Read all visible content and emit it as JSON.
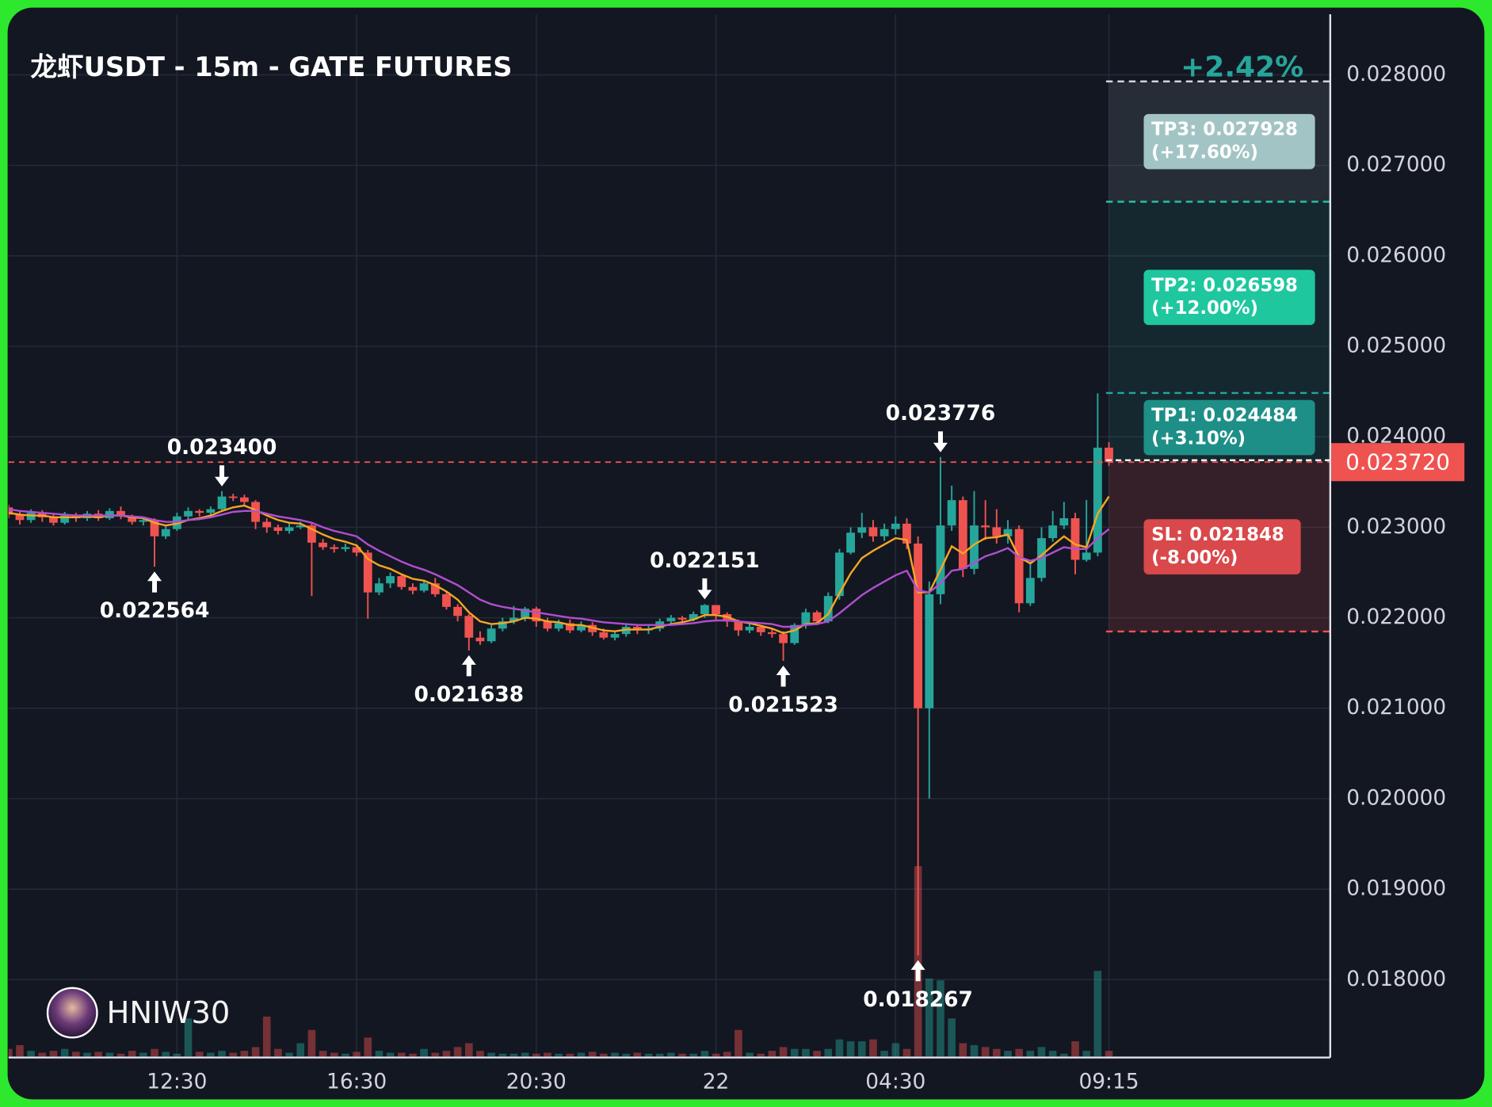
{
  "chart_data": {
    "type": "candlestick",
    "title": "龙虾USDT - 15m - GATE FUTURES",
    "change_label": "+2.42%",
    "watermark": "HNIW30",
    "categories": [
      null,
      null,
      null,
      null,
      null,
      null,
      null,
      null,
      null,
      null,
      null,
      null,
      null,
      null,
      null,
      "12:30",
      null,
      null,
      null,
      null,
      null,
      null,
      null,
      null,
      null,
      null,
      null,
      null,
      null,
      null,
      null,
      "16:30",
      null,
      null,
      null,
      null,
      null,
      null,
      null,
      null,
      null,
      null,
      null,
      null,
      null,
      null,
      null,
      "20:30",
      null,
      null,
      null,
      null,
      null,
      null,
      null,
      null,
      null,
      null,
      null,
      null,
      null,
      null,
      null,
      "22",
      null,
      null,
      null,
      null,
      null,
      null,
      null,
      null,
      null,
      null,
      null,
      null,
      null,
      null,
      null,
      "04:30",
      null,
      null,
      null,
      null,
      null,
      null,
      null,
      null,
      null,
      null,
      null,
      null,
      null,
      null,
      null,
      null,
      null,
      null,
      "09:15"
    ],
    "open": [
      0.02322,
      0.02314,
      0.02308,
      0.02316,
      0.02311,
      0.02305,
      0.02313,
      0.0231,
      0.02315,
      0.0231,
      0.02318,
      0.02312,
      0.02306,
      0.02308,
      0.0229,
      0.02298,
      0.02312,
      0.02318,
      0.02316,
      0.0232,
      0.02334,
      0.02333,
      0.02328,
      0.02306,
      0.023,
      0.02296,
      0.023,
      0.02302,
      0.02283,
      0.02278,
      0.02276,
      0.02278,
      0.02272,
      0.02228,
      0.02238,
      0.02246,
      0.02234,
      0.0223,
      0.02238,
      0.02226,
      0.02212,
      0.02202,
      0.02178,
      0.02174,
      0.02188,
      0.02196,
      0.022,
      0.0221,
      0.02196,
      0.02188,
      0.02194,
      0.02186,
      0.02192,
      0.02184,
      0.02178,
      0.02182,
      0.0219,
      0.02186,
      0.02188,
      0.02196,
      0.022,
      0.02198,
      0.02204,
      0.02214,
      0.02204,
      0.02196,
      0.02186,
      0.0219,
      0.02184,
      0.02182,
      0.02172,
      0.02192,
      0.02206,
      0.02196,
      0.02224,
      0.02272,
      0.02294,
      0.023,
      0.0229,
      0.02298,
      0.02304,
      0.02282,
      0.021,
      0.02226,
      0.02302,
      0.0233,
      0.02254,
      0.02302,
      0.023,
      0.0229,
      0.02298,
      0.02216,
      0.02244,
      0.02288,
      0.02302,
      0.0231,
      0.02264,
      0.02272,
      0.02388
    ],
    "high": [
      0.02325,
      0.02318,
      0.0232,
      0.02319,
      0.02314,
      0.02317,
      0.02316,
      0.02318,
      0.02319,
      0.02321,
      0.02323,
      0.02314,
      0.02311,
      0.0231,
      0.02302,
      0.02316,
      0.02322,
      0.0232,
      0.02323,
      0.0234,
      0.02337,
      0.02336,
      0.0233,
      0.0231,
      0.02303,
      0.02305,
      0.02306,
      0.02305,
      0.02287,
      0.02281,
      0.02282,
      0.02281,
      0.02275,
      0.02244,
      0.0225,
      0.02249,
      0.02238,
      0.02242,
      0.02244,
      0.02228,
      0.02215,
      0.02204,
      0.02185,
      0.02192,
      0.022,
      0.02213,
      0.02212,
      0.02212,
      0.022,
      0.02198,
      0.02198,
      0.02196,
      0.02195,
      0.02188,
      0.02185,
      0.02193,
      0.02192,
      0.02191,
      0.02199,
      0.02203,
      0.02202,
      0.02207,
      0.022151,
      0.02214,
      0.02206,
      0.02198,
      0.02194,
      0.02192,
      0.02188,
      0.02185,
      0.02194,
      0.0221,
      0.02208,
      0.02228,
      0.02276,
      0.023,
      0.02316,
      0.02308,
      0.02304,
      0.02312,
      0.0231,
      0.0229,
      0.0224,
      0.023776,
      0.02346,
      0.02334,
      0.0234,
      0.0233,
      0.0232,
      0.02308,
      0.02302,
      0.02262,
      0.023,
      0.02318,
      0.02328,
      0.02316,
      0.0233,
      0.02448,
      0.02394
    ],
    "low": [
      0.0231,
      0.02303,
      0.02305,
      0.02306,
      0.02302,
      0.02303,
      0.02306,
      0.02307,
      0.02307,
      0.02308,
      0.02309,
      0.02303,
      0.02302,
      0.022564,
      0.02287,
      0.02296,
      0.02309,
      0.02312,
      0.02313,
      0.02318,
      0.02329,
      0.02325,
      0.02298,
      0.02294,
      0.02292,
      0.02293,
      0.02298,
      0.02224,
      0.02275,
      0.02272,
      0.02273,
      0.02268,
      0.02199,
      0.02225,
      0.02233,
      0.02231,
      0.02226,
      0.02228,
      0.02223,
      0.02209,
      0.02196,
      0.021638,
      0.0217,
      0.02172,
      0.02185,
      0.02193,
      0.02196,
      0.0219,
      0.02185,
      0.02185,
      0.02183,
      0.02184,
      0.0218,
      0.02176,
      0.02175,
      0.02179,
      0.02182,
      0.02182,
      0.02185,
      0.02194,
      0.02195,
      0.02196,
      0.022,
      0.02198,
      0.0219,
      0.0218,
      0.02183,
      0.0218,
      0.02178,
      0.021523,
      0.0217,
      0.02188,
      0.02192,
      0.02194,
      0.0222,
      0.0227,
      0.02288,
      0.02284,
      0.02285,
      0.02292,
      0.02276,
      0.018267,
      0.02,
      0.02215,
      0.02296,
      0.02245,
      0.02248,
      0.02286,
      0.02282,
      0.02282,
      0.02206,
      0.02213,
      0.0224,
      0.02284,
      0.02298,
      0.02248,
      0.02262,
      0.02268,
      0.02368
    ],
    "close": [
      0.02314,
      0.02308,
      0.02316,
      0.02311,
      0.02305,
      0.02313,
      0.0231,
      0.02315,
      0.0231,
      0.02318,
      0.02312,
      0.02306,
      0.02308,
      0.0229,
      0.02298,
      0.02312,
      0.02318,
      0.02316,
      0.0232,
      0.02334,
      0.02333,
      0.02328,
      0.02306,
      0.023,
      0.02296,
      0.023,
      0.02302,
      0.02283,
      0.02278,
      0.02276,
      0.02278,
      0.02272,
      0.02228,
      0.02238,
      0.02246,
      0.02234,
      0.0223,
      0.02238,
      0.02226,
      0.02212,
      0.02202,
      0.02178,
      0.02174,
      0.02188,
      0.02196,
      0.022,
      0.0221,
      0.02196,
      0.02188,
      0.02194,
      0.02186,
      0.02192,
      0.02184,
      0.02178,
      0.02182,
      0.0219,
      0.02186,
      0.02188,
      0.02196,
      0.022,
      0.02198,
      0.02204,
      0.02214,
      0.02204,
      0.02196,
      0.02186,
      0.0219,
      0.02184,
      0.02182,
      0.02172,
      0.02192,
      0.02206,
      0.02196,
      0.02224,
      0.02272,
      0.02294,
      0.023,
      0.0229,
      0.02298,
      0.02304,
      0.02282,
      0.021,
      0.02226,
      0.02302,
      0.0233,
      0.02254,
      0.02302,
      0.023,
      0.0229,
      0.02298,
      0.02216,
      0.02244,
      0.02288,
      0.02302,
      0.0231,
      0.02264,
      0.02272,
      0.02388,
      0.02372
    ],
    "volume": [
      8,
      12,
      6,
      4,
      6,
      8,
      5,
      4,
      5,
      4,
      3,
      6,
      4,
      8,
      5,
      3,
      40,
      5,
      4,
      6,
      4,
      6,
      10,
      42,
      8,
      4,
      14,
      28,
      6,
      4,
      3,
      5,
      20,
      6,
      4,
      4,
      3,
      8,
      4,
      6,
      10,
      14,
      6,
      4,
      3,
      3,
      4,
      3,
      4,
      3,
      3,
      4,
      5,
      3,
      4,
      3,
      4,
      3,
      3,
      4,
      3,
      3,
      6,
      3,
      5,
      28,
      4,
      3,
      6,
      10,
      8,
      8,
      6,
      8,
      18,
      16,
      16,
      18,
      6,
      14,
      8,
      200,
      82,
      80,
      40,
      14,
      12,
      10,
      8,
      6,
      8,
      6,
      10,
      6,
      3,
      16,
      6,
      90,
      6
    ],
    "ma_lines": [
      {
        "color": "#f5a623",
        "values": [
          0.02316,
          0.02314,
          0.02313,
          0.02313,
          0.02311,
          0.02311,
          0.02311,
          0.02312,
          0.02311,
          0.02313,
          0.02313,
          0.02311,
          0.0231,
          0.02305,
          0.02302,
          0.02304,
          0.02308,
          0.0231,
          0.02313,
          0.02318,
          0.02322,
          0.02324,
          0.02319,
          0.02313,
          0.02308,
          0.02305,
          0.02304,
          0.02298,
          0.02292,
          0.02287,
          0.02284,
          0.0228,
          0.02265,
          0.02258,
          0.02254,
          0.02248,
          0.02243,
          0.02241,
          0.02236,
          0.02229,
          0.0222,
          0.02206,
          0.02196,
          0.02193,
          0.02194,
          0.02196,
          0.022,
          0.02199,
          0.02196,
          0.02195,
          0.02192,
          0.02192,
          0.02189,
          0.02186,
          0.02185,
          0.02187,
          0.02187,
          0.02187,
          0.0219,
          0.02193,
          0.02195,
          0.02198,
          0.02203,
          0.02203,
          0.02201,
          0.02196,
          0.02194,
          0.02191,
          0.02188,
          0.02183,
          0.02186,
          0.02193,
          0.02194,
          0.02204,
          0.02227,
          0.02249,
          0.02266,
          0.02274,
          0.02281,
          0.02288,
          0.02286,
          0.02228,
          0.02228,
          0.02253,
          0.02279,
          0.02271,
          0.02281,
          0.02288,
          0.02289,
          0.02292,
          0.02267,
          0.0226,
          0.02269,
          0.0228,
          0.0229,
          0.02281,
          0.02278,
          0.02315,
          0.02334
        ]
      },
      {
        "color": "#b04fd0",
        "values": [
          0.0232,
          0.02318,
          0.02317,
          0.02316,
          0.02315,
          0.02314,
          0.02313,
          0.02313,
          0.02313,
          0.02313,
          0.02313,
          0.02312,
          0.02311,
          0.02308,
          0.02306,
          0.02306,
          0.02308,
          0.02309,
          0.02311,
          0.02314,
          0.02317,
          0.02318,
          0.02318,
          0.02315,
          0.02312,
          0.0231,
          0.02308,
          0.02305,
          0.023,
          0.02296,
          0.02293,
          0.0229,
          0.02281,
          0.02274,
          0.02268,
          0.02262,
          0.02257,
          0.02253,
          0.02248,
          0.02242,
          0.02236,
          0.02228,
          0.0222,
          0.02215,
          0.02212,
          0.0221,
          0.02208,
          0.02206,
          0.02204,
          0.02202,
          0.022,
          0.02199,
          0.02197,
          0.02195,
          0.02194,
          0.02193,
          0.02192,
          0.02192,
          0.02192,
          0.02192,
          0.02193,
          0.02194,
          0.02196,
          0.02197,
          0.02197,
          0.02196,
          0.02195,
          0.02194,
          0.02193,
          0.0219,
          0.0219,
          0.02192,
          0.02193,
          0.02196,
          0.02205,
          0.02215,
          0.02225,
          0.02233,
          0.0224,
          0.02247,
          0.02252,
          0.0223,
          0.02228,
          0.02238,
          0.02252,
          0.02254,
          0.02261,
          0.02268,
          0.02272,
          0.02277,
          0.02267,
          0.02263,
          0.02266,
          0.02272,
          0.02278,
          0.02276,
          0.02276,
          0.02288,
          0.02298
        ]
      }
    ],
    "up_color": "#26a69a",
    "down_color": "#ef5350",
    "ylim": [
      0.01715,
      0.02867
    ],
    "yticks": [
      {
        "value": 0.018,
        "label": "0.018000"
      },
      {
        "value": 0.019,
        "label": "0.019000"
      },
      {
        "value": 0.02,
        "label": "0.020000"
      },
      {
        "value": 0.021,
        "label": "0.021000"
      },
      {
        "value": 0.022,
        "label": "0.022000"
      },
      {
        "value": 0.023,
        "label": "0.023000"
      },
      {
        "value": 0.024,
        "label": "0.024000"
      },
      {
        "value": 0.025,
        "label": "0.025000"
      },
      {
        "value": 0.026,
        "label": "0.026000"
      },
      {
        "value": 0.027,
        "label": "0.027000"
      },
      {
        "value": 0.028,
        "label": "0.028000"
      }
    ],
    "grid": true,
    "last_price": {
      "value": 0.02372,
      "label": "0.023720"
    },
    "levels": [
      {
        "label": "TP3: 0.027928",
        "pct": "(+17.60%)",
        "value": 0.027928,
        "color": "#d1d4dc",
        "box_color": "#a3c4c4",
        "zone_color": "rgba(140,160,170,0.16)"
      },
      {
        "label": "TP2: 0.026598",
        "pct": "(+12.00%)",
        "value": 0.026598,
        "color": "#26c6a6",
        "box_color": "#1fc79f",
        "zone_color": "rgba(38,166,154,0.12)"
      },
      {
        "label": "TP1: 0.024484",
        "pct": "(+3.10%)",
        "value": 0.024484,
        "color": "#26a69a",
        "box_color": "#1e8f86",
        "zone_color": "rgba(38,166,154,0.12)"
      },
      {
        "label": "SL: 0.021848",
        "pct": "(-8.00%)",
        "value": 0.021848,
        "color": "#ef5350",
        "box_color": "#d9484a",
        "zone_color": "rgba(239,83,80,0.16)"
      }
    ],
    "annotations": [
      {
        "label": "0.023400",
        "value": 0.0234,
        "side": "high"
      },
      {
        "label": "0.022564",
        "value": 0.022564,
        "side": "low"
      },
      {
        "label": "0.021638",
        "value": 0.021638,
        "side": "low"
      },
      {
        "label": "0.022151",
        "value": 0.022151,
        "side": "high"
      },
      {
        "label": "0.021523",
        "value": 0.021523,
        "side": "low"
      },
      {
        "label": "0.023776",
        "value": 0.023776,
        "side": "high"
      },
      {
        "label": "0.018267",
        "value": 0.018267,
        "side": "low"
      }
    ]
  }
}
